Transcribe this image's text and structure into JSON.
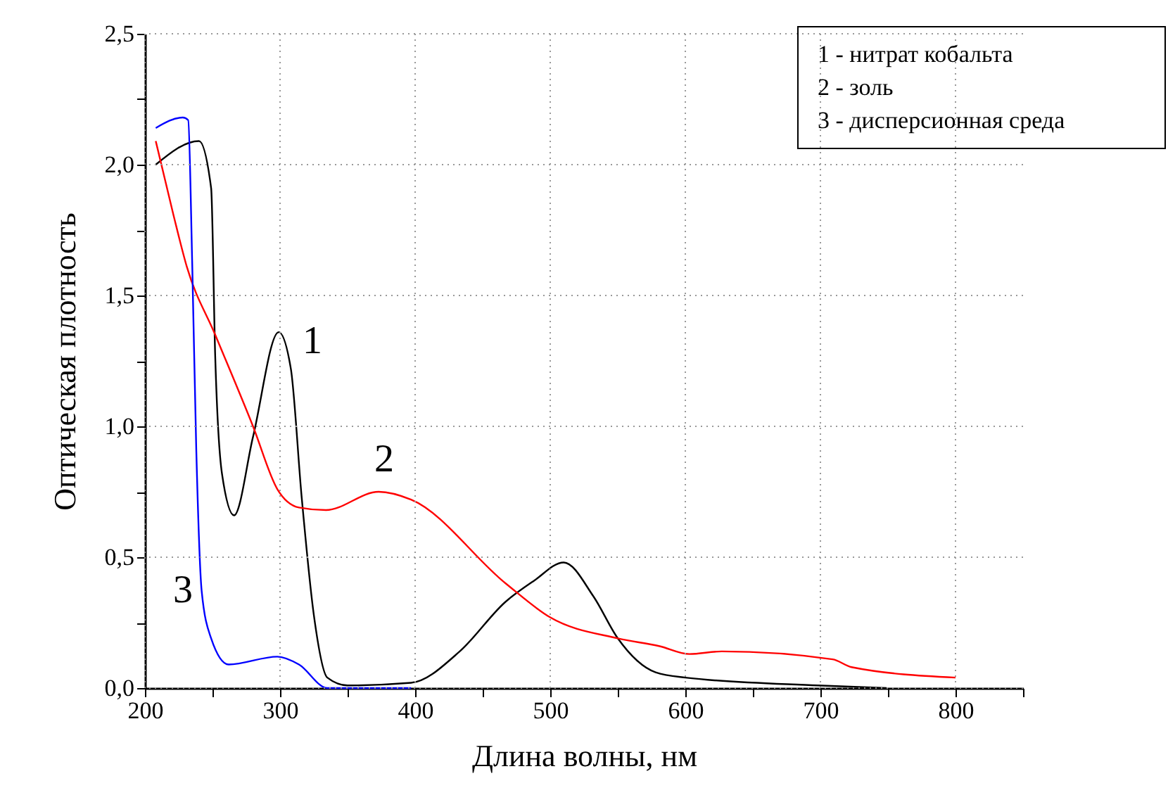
{
  "chart_data": {
    "type": "line",
    "xlabel": "Длина волны, нм",
    "ylabel": "Оптическая плотность",
    "xlim": [
      200,
      850
    ],
    "ylim": [
      0,
      2.5
    ],
    "xticks": [
      200,
      {
        "value": 250,
        "label": null
      },
      300,
      {
        "value": 350,
        "label": null
      },
      400,
      {
        "value": 450,
        "label": null
      },
      500,
      {
        "value": 550,
        "label": null
      },
      600,
      {
        "value": 650,
        "label": null
      },
      700,
      {
        "value": 750,
        "label": null
      },
      800,
      {
        "value": 850,
        "label": null
      }
    ],
    "yticks": [
      {
        "value": 0,
        "label": "0,0"
      },
      {
        "value": 0.25,
        "label": null
      },
      {
        "value": 0.5,
        "label": "0,5"
      },
      {
        "value": 0.75,
        "label": null
      },
      {
        "value": 1,
        "label": "1,0"
      },
      {
        "value": 1.25,
        "label": null
      },
      {
        "value": 1.5,
        "label": "1,5"
      },
      {
        "value": 1.75,
        "label": null
      },
      {
        "value": 2,
        "label": "2,0"
      },
      {
        "value": 2.25,
        "label": null
      },
      {
        "value": 2.5,
        "label": "2,5"
      }
    ],
    "grid": true,
    "legend": false,
    "series": [
      {
        "color": "#000000",
        "x": [
          208,
          240,
          249,
          252,
          257,
          266,
          280,
          299,
          308,
          316,
          325,
          335,
          350,
          397,
          433,
          467,
          488,
          510,
          532,
          550,
          578,
          600,
          698,
          749
        ],
        "values": [
          2.0,
          2.09,
          1.91,
          1.27,
          0.82,
          0.66,
          0.96,
          1.36,
          1.22,
          0.73,
          0.28,
          0.04,
          0.01,
          0.02,
          0.14,
          0.33,
          0.41,
          0.48,
          0.35,
          0.19,
          0.06,
          0.04,
          0.01,
          0.0
        ]
      },
      {
        "color": "#ff0000",
        "x": [
          208,
          221,
          231,
          252,
          280,
          298,
          314,
          334,
          373,
          397,
          467,
          500,
          550,
          581,
          603,
          627,
          709,
          723,
          800
        ],
        "values": [
          2.09,
          1.81,
          1.61,
          1.35,
          1.0,
          0.76,
          0.69,
          0.68,
          0.75,
          0.72,
          0.4,
          0.27,
          0.19,
          0.16,
          0.13,
          0.14,
          0.11,
          0.08,
          0.04
        ]
      },
      {
        "color": "#0000ff",
        "x": [
          208,
          228,
          232,
          235,
          238,
          242,
          249,
          262,
          298,
          314,
          335,
          397
        ],
        "values": [
          2.14,
          2.18,
          2.17,
          1.62,
          0.91,
          0.37,
          0.19,
          0.09,
          0.12,
          0.09,
          0.0,
          0.0
        ]
      }
    ],
    "annotations": [
      "1",
      "2",
      "3",
      "1 - нитрат кобальта",
      "2 - золь",
      "3 - дисперсионная среда"
    ]
  }
}
